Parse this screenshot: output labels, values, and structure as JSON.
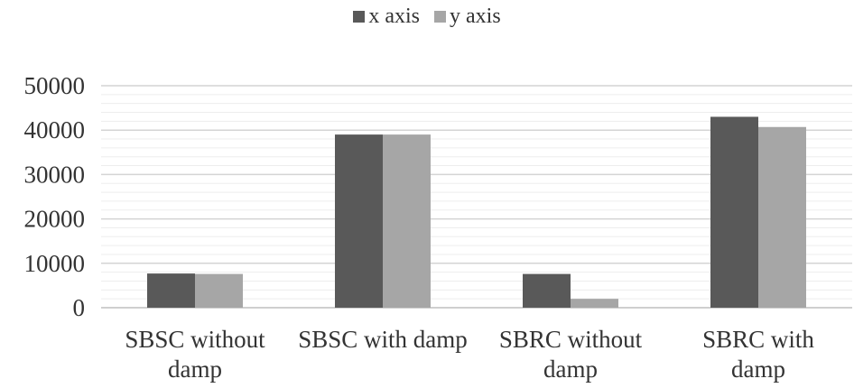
{
  "chart_data": {
    "type": "bar",
    "title": "",
    "xlabel": "",
    "ylabel": "",
    "categories": [
      [
        "SBSC without",
        "damp"
      ],
      [
        "SBSC with damp"
      ],
      [
        "SBRC without",
        "damp"
      ],
      [
        "SBRC with",
        "damp"
      ]
    ],
    "series": [
      {
        "name": "x axis",
        "color": "#595959",
        "values": [
          7700,
          39000,
          7600,
          43000
        ]
      },
      {
        "name": "y axis",
        "color": "#a6a6a6",
        "values": [
          7600,
          39000,
          2000,
          40700
        ]
      }
    ],
    "ylim": [
      0,
      50000
    ],
    "yticks": [
      "0",
      "10000",
      "20000",
      "30000",
      "40000",
      "50000"
    ],
    "major_step": 10000,
    "minor_step": 2000,
    "grid": true,
    "legend_position": "top-center"
  }
}
